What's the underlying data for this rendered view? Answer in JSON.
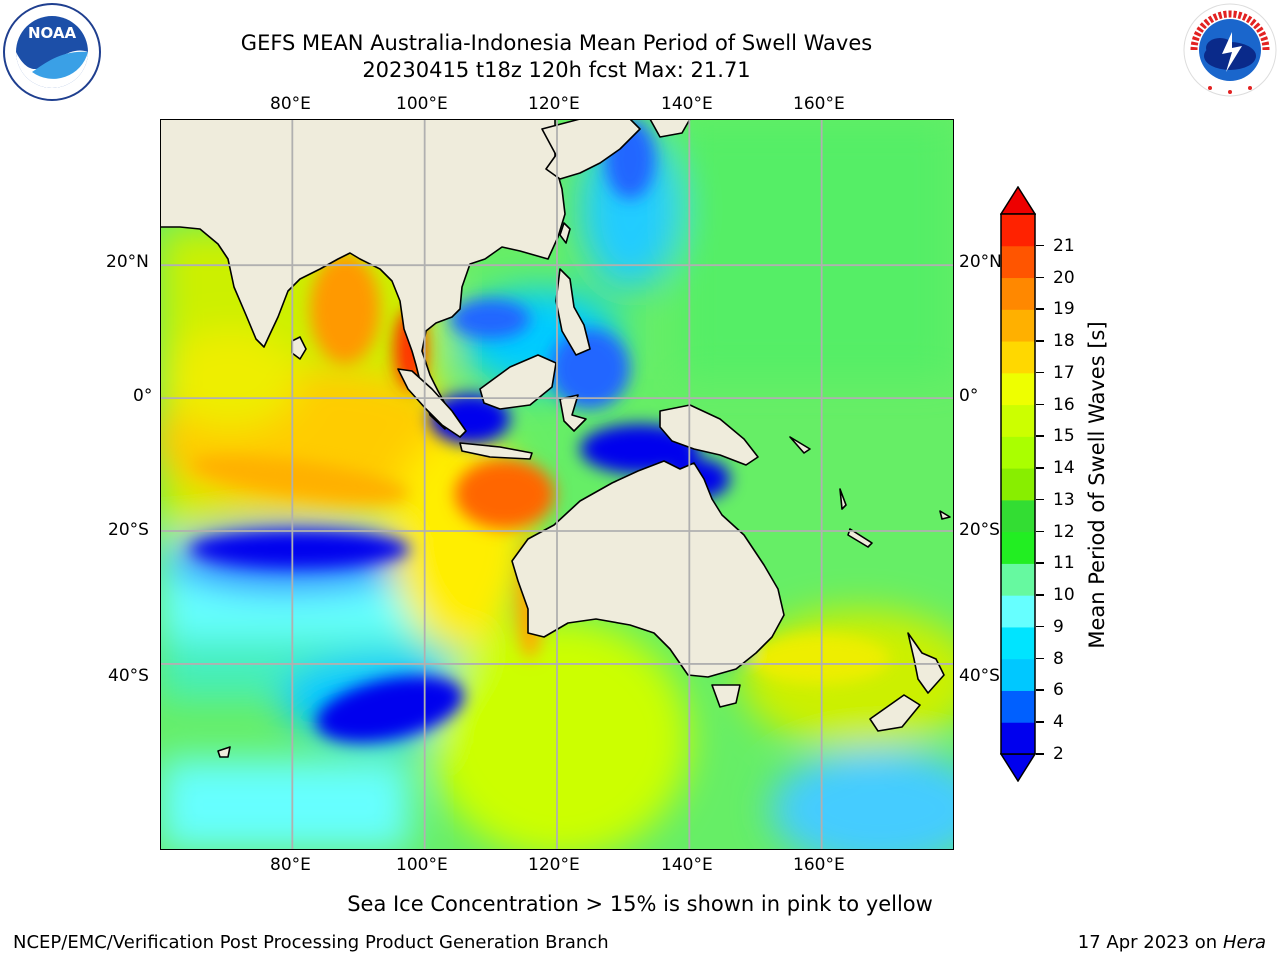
{
  "header": {
    "title_line1": "GEFS MEAN Australia-Indonesia Mean Period of Swell Waves",
    "title_line2": "20230415 t18z 120h fcst   Max: 21.71"
  },
  "logos": {
    "left": {
      "text": "NOAA",
      "ring_text": "NATIONAL OCEANIC AND ATMOSPHERIC ADMINISTRATION · U.S. DEPARTMENT OF COMMERCE"
    },
    "right": {
      "ring_text": "NATIONAL WEATHER SERVICE"
    }
  },
  "map": {
    "lon_ticks": [
      "80°E",
      "100°E",
      "120°E",
      "140°E",
      "160°E"
    ],
    "lat_ticks": [
      "20°N",
      "0°",
      "20°S",
      "40°S"
    ],
    "lon_values": [
      80,
      100,
      120,
      140,
      160
    ],
    "lat_values": [
      20,
      0,
      -20,
      -40
    ],
    "lon_range": [
      60,
      180
    ],
    "lat_range": [
      -68,
      42
    ],
    "ocean_color": "#66ee66",
    "land_color": "#efecdc"
  },
  "colorbar": {
    "label": "Mean Period of Swell Waves [s]",
    "ticks": [
      "2",
      "4",
      "6",
      "8",
      "9",
      "10",
      "11",
      "12",
      "13",
      "14",
      "15",
      "16",
      "17",
      "18",
      "19",
      "20",
      "21"
    ],
    "colors": [
      "#0000ee",
      "#0060ff",
      "#00c8ff",
      "#00e4ff",
      "#66ffff",
      "#66f9a0",
      "#22ee22",
      "#33dd33",
      "#88ee00",
      "#aaff00",
      "#ccff00",
      "#eeff00",
      "#ffd800",
      "#ffb000",
      "#ff8800",
      "#ff5500",
      "#ff2200"
    ],
    "under_color": "#0000ee",
    "over_color": "#ee0000"
  },
  "note": "Sea Ice Concentration > 15% is shown in pink to yellow",
  "footer": {
    "left": "NCEP/EMC/Verification Post Processing Product Generation Branch",
    "date": "17 Apr 2023 on ",
    "host": "Hera"
  }
}
